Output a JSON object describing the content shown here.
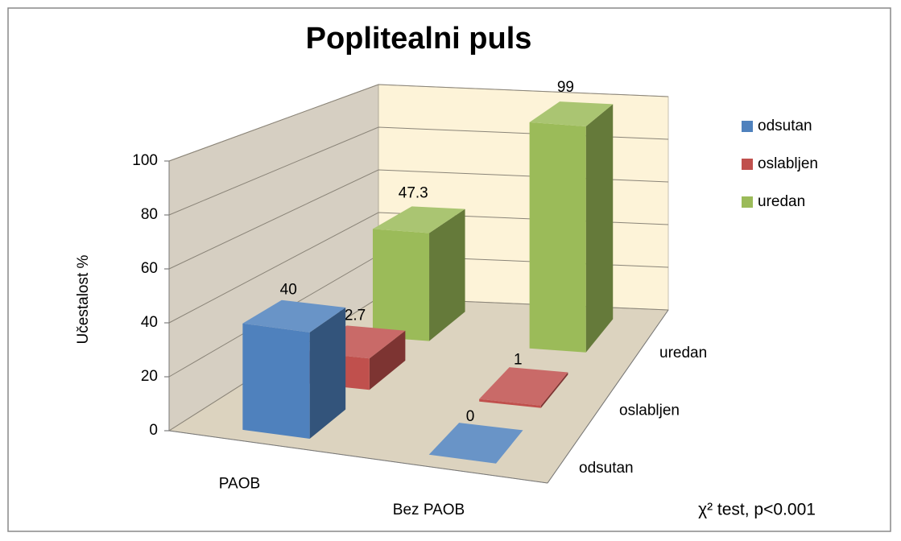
{
  "chart_data": {
    "type": "bar3d",
    "title": "Poplitealni puls",
    "categories": [
      "PAOB",
      "Bez PAOB"
    ],
    "series": [
      {
        "name": "odsutan",
        "color": "#4f81bd",
        "values": [
          40,
          0
        ]
      },
      {
        "name": "oslabljen",
        "color": "#c0504d",
        "values": [
          12.7,
          1
        ]
      },
      {
        "name": "uredan",
        "color": "#9bbb59",
        "values": [
          47.3,
          99
        ]
      }
    ],
    "ylabel": "Učestalost  %",
    "ylim": [
      0,
      100
    ],
    "yticks": [
      0,
      20,
      40,
      60,
      80,
      100
    ],
    "grid": true,
    "legend": "right",
    "annotation": "χ² test, p<0.001"
  }
}
